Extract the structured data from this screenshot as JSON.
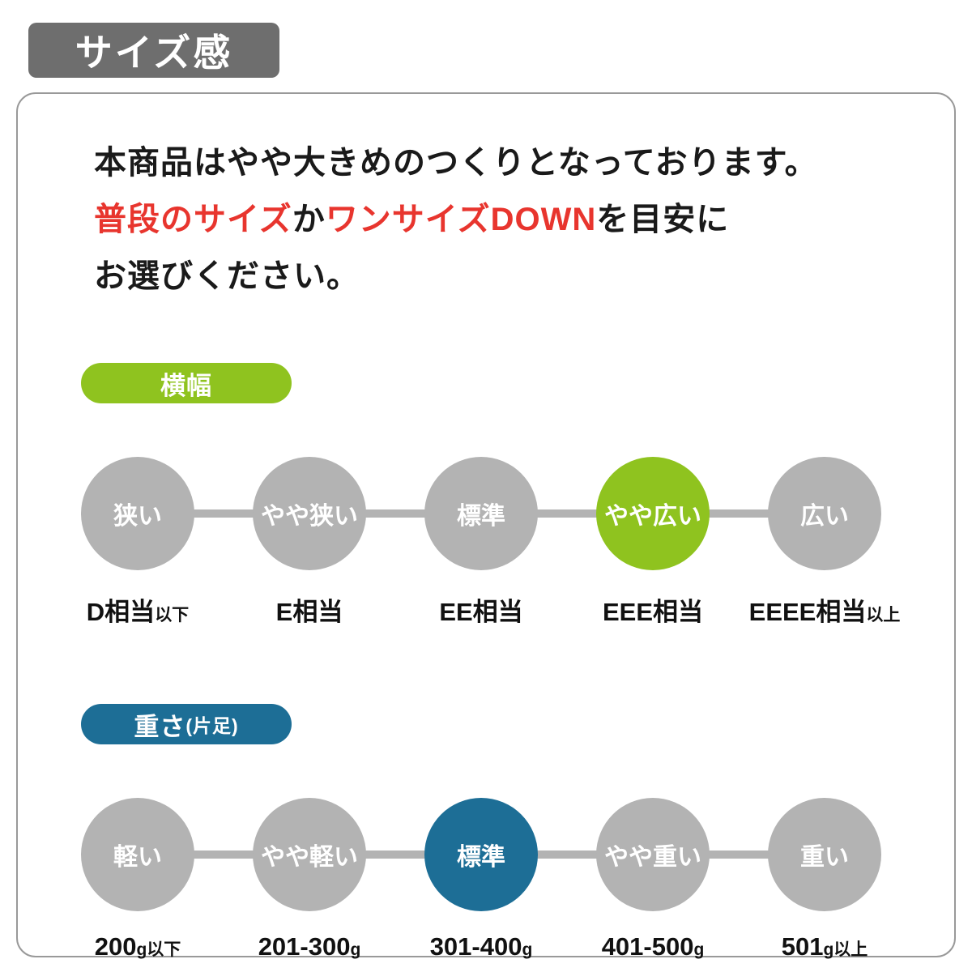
{
  "page_title": "サイズ感",
  "description": {
    "line1": "本商品はやや大きめのつくりとなっております。",
    "line2": {
      "red1": "普段のサイズ",
      "black1": "か",
      "red2": "ワンサイズDOWN",
      "black2": "を目安に"
    },
    "line3": "お選びください。"
  },
  "sections": [
    {
      "id": "width",
      "badge": {
        "label": "横幅",
        "suffix": ""
      },
      "accent_color": "#8fc31f",
      "scale": [
        {
          "label": "狭い",
          "active": false
        },
        {
          "label": "やや狭い",
          "active": false
        },
        {
          "label": "標準",
          "active": false
        },
        {
          "label": "やや広い",
          "active": true
        },
        {
          "label": "広い",
          "active": false
        }
      ],
      "value_labels": [
        {
          "main": "D相当",
          "suffix": "以下"
        },
        {
          "main": "E相当",
          "suffix": ""
        },
        {
          "main": "EE相当",
          "suffix": ""
        },
        {
          "main": "EEE相当",
          "suffix": ""
        },
        {
          "main": "EEEE相当",
          "suffix": "以上"
        }
      ]
    },
    {
      "id": "weight",
      "badge": {
        "label": "重さ",
        "suffix": "(片足)"
      },
      "accent_color": "#1d6e96",
      "scale": [
        {
          "label": "軽い",
          "active": false
        },
        {
          "label": "やや軽い",
          "active": false
        },
        {
          "label": "標準",
          "active": true
        },
        {
          "label": "やや重い",
          "active": false
        },
        {
          "label": "重い",
          "active": false
        }
      ],
      "value_labels": [
        {
          "main": "200",
          "suffix": "g以下"
        },
        {
          "main": "201-300",
          "suffix": "g"
        },
        {
          "main": "301-400",
          "suffix": "g"
        },
        {
          "main": "401-500",
          "suffix": "g"
        },
        {
          "main": "501",
          "suffix": "g以上"
        }
      ]
    }
  ],
  "colors": {
    "title-gray": "#6e6e6e",
    "circle-gray": "#b3b3b3",
    "green": "#8fc31f",
    "teal": "#1d6e96",
    "red": "#e8352e",
    "border-gray": "#999999"
  }
}
